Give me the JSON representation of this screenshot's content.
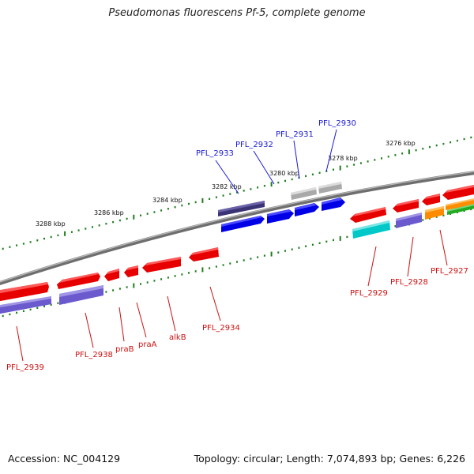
{
  "title": "Pseudomonas fluorescens Pf-5, complete genome",
  "footer": {
    "accession": "Accession: NC_004129",
    "summary": "Topology: circular; Length: 7,074,893 bp; Genes: 6,226"
  },
  "colors": {
    "backbone": "#7a7a7a",
    "ticks": "#1e7d1e",
    "label_top": "#1a1ad6",
    "label_bottom": "#cc1111"
  },
  "kbp_labels": [
    {
      "text": "3288 kbp",
      "kbp": 3288
    },
    {
      "text": "3286 kbp",
      "kbp": 3286
    },
    {
      "text": "3284 kbp",
      "kbp": 3284
    },
    {
      "text": "3282 kbp",
      "kbp": 3282
    },
    {
      "text": "3280 kbp",
      "kbp": 3280
    },
    {
      "text": "3278 kbp",
      "kbp": 3278
    },
    {
      "text": "3276 kbp",
      "kbp": 3276
    }
  ],
  "gene_labels_top": [
    {
      "text": "PFL_2933",
      "color": "#1a1ad6"
    },
    {
      "text": "PFL_2932",
      "color": "#1a1ad6"
    },
    {
      "text": "PFL_2931",
      "color": "#1a1ad6"
    },
    {
      "text": "PFL_2930",
      "color": "#1a1ad6"
    }
  ],
  "gene_labels_bottom": [
    {
      "text": "PFL_2939",
      "color": "#cc1111"
    },
    {
      "text": "PFL_2938",
      "color": "#cc1111"
    },
    {
      "text": "praB",
      "color": "#cc1111"
    },
    {
      "text": "praA",
      "color": "#cc1111"
    },
    {
      "text": "alkB",
      "color": "#cc1111"
    },
    {
      "text": "PFL_2934",
      "color": "#cc1111"
    },
    {
      "text": "PFL_2929",
      "color": "#cc1111"
    },
    {
      "text": "PFL_2928",
      "color": "#cc1111"
    },
    {
      "text": "PFL_2927",
      "color": "#cc1111"
    }
  ]
}
